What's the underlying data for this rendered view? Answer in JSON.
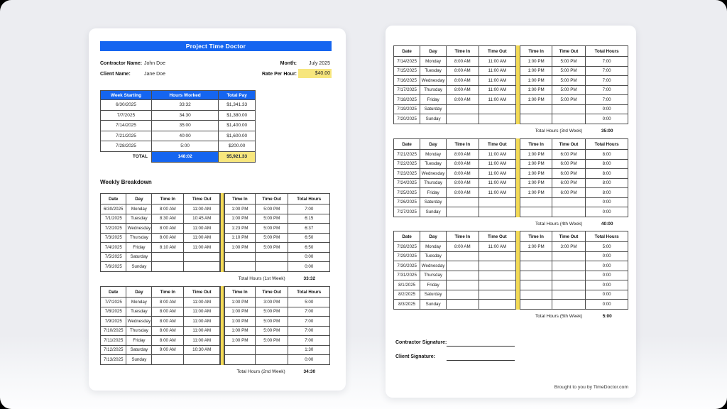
{
  "colors": {
    "accent_blue": "#1565f0",
    "highlight_yellow": "#f7e67d",
    "stripe_yellow": "#f3da55"
  },
  "document": {
    "title": "Project Time Doctor",
    "contractor_label": "Contractor Name:",
    "contractor_name": "John Doe",
    "client_label": "Client Name:",
    "client_name": "Jane Doe",
    "month_label": "Month:",
    "month_value": "July 2025",
    "rate_label": "Rate Per Hour:",
    "rate_value": "$40.00"
  },
  "summary_table": {
    "headers": [
      "Week Starting",
      "Hours Worked",
      "Total Pay"
    ],
    "rows": [
      [
        "6/30/2025",
        "33:32",
        "$1,341.33"
      ],
      [
        "7/7/2025",
        "34:30",
        "$1,380.00"
      ],
      [
        "7/14/2025",
        "35:00",
        "$1,400.00"
      ],
      [
        "7/21/2025",
        "40:00",
        "$1,600.00"
      ],
      [
        "7/28/2025",
        "5:00",
        "$200.00"
      ]
    ],
    "total_label": "TOTAL",
    "total_hours": "148:02",
    "total_pay": "$5,921.33"
  },
  "weekly_breakdown": {
    "heading": "Weekly Breakdown",
    "table_headers": [
      "Date",
      "Day",
      "Time In",
      "Time Out",
      "Time In",
      "Time Out",
      "Total Hours"
    ],
    "weeks": [
      {
        "total_label": "Total Hours (1st Week)",
        "total_value": "33:32",
        "rows": [
          [
            "6/30/2025",
            "Monday",
            "8:00 AM",
            "11:00 AM",
            "1:00 PM",
            "5:00 PM",
            "7:00"
          ],
          [
            "7/1/2025",
            "Tuesday",
            "8:30 AM",
            "10:45 AM",
            "1:00 PM",
            "5:00 PM",
            "6:15"
          ],
          [
            "7/2/2025",
            "Wednesday",
            "8:00 AM",
            "11:00 AM",
            "1:23 PM",
            "5:00 PM",
            "6:37"
          ],
          [
            "7/3/2025",
            "Thursday",
            "8:00 AM",
            "11:00 AM",
            "1:10 PM",
            "5:00 PM",
            "6:50"
          ],
          [
            "7/4/2025",
            "Friday",
            "8:10 AM",
            "11:00 AM",
            "1:00 PM",
            "5:00 PM",
            "6:50"
          ],
          [
            "7/5/2025",
            "Saturday",
            "",
            "",
            "",
            "",
            "0:00"
          ],
          [
            "7/6/2025",
            "Sunday",
            "",
            "",
            "",
            "",
            "0:00"
          ]
        ]
      },
      {
        "total_label": "Total Hours (2nd Week)",
        "total_value": "34:30",
        "rows": [
          [
            "7/7/2025",
            "Monday",
            "8:00 AM",
            "11:00 AM",
            "1:00 PM",
            "3:00 PM",
            "5:00"
          ],
          [
            "7/8/2025",
            "Tuesday",
            "8:00 AM",
            "11:00 AM",
            "1:00 PM",
            "5:00 PM",
            "7:00"
          ],
          [
            "7/9/2025",
            "Wednesday",
            "8:00 AM",
            "11:00 AM",
            "1:00 PM",
            "5:00 PM",
            "7:00"
          ],
          [
            "7/10/2025",
            "Thursday",
            "8:00 AM",
            "11:00 AM",
            "1:00 PM",
            "5:00 PM",
            "7:00"
          ],
          [
            "7/11/2025",
            "Friday",
            "8:00 AM",
            "11:00 AM",
            "1:00 PM",
            "5:00 PM",
            "7:00"
          ],
          [
            "7/12/2025",
            "Saturday",
            "9:00 AM",
            "10:30 AM",
            "",
            "",
            "1:30"
          ],
          [
            "7/13/2025",
            "Sunday",
            "",
            "",
            "",
            "",
            "0:00"
          ]
        ]
      },
      {
        "total_label": "Total Hours (3rd Week)",
        "total_value": "35:00",
        "rows": [
          [
            "7/14/2025",
            "Monday",
            "8:00 AM",
            "11:00 AM",
            "1:00 PM",
            "5:00 PM",
            "7:00"
          ],
          [
            "7/15/2025",
            "Tuesday",
            "8:00 AM",
            "11:00 AM",
            "1:00 PM",
            "5:00 PM",
            "7:00"
          ],
          [
            "7/16/2025",
            "Wednesday",
            "8:00 AM",
            "11:00 AM",
            "1:00 PM",
            "5:00 PM",
            "7:00"
          ],
          [
            "7/17/2025",
            "Thursday",
            "8:00 AM",
            "11:00 AM",
            "1:00 PM",
            "5:00 PM",
            "7:00"
          ],
          [
            "7/18/2025",
            "Friday",
            "8:00 AM",
            "11:00 AM",
            "1:00 PM",
            "5:00 PM",
            "7:00"
          ],
          [
            "7/19/2025",
            "Saturday",
            "",
            "",
            "",
            "",
            "0:00"
          ],
          [
            "7/20/2025",
            "Sunday",
            "",
            "",
            "",
            "",
            "0:00"
          ]
        ]
      },
      {
        "total_label": "Total Hours (4th Week)",
        "total_value": "40:00",
        "rows": [
          [
            "7/21/2025",
            "Monday",
            "8:00 AM",
            "11:00 AM",
            "1:00 PM",
            "6:00 PM",
            "8:00"
          ],
          [
            "7/22/2025",
            "Tuesday",
            "8:00 AM",
            "11:00 AM",
            "1:00 PM",
            "6:00 PM",
            "8:00"
          ],
          [
            "7/23/2025",
            "Wednesday",
            "8:00 AM",
            "11:00 AM",
            "1:00 PM",
            "6:00 PM",
            "8:00"
          ],
          [
            "7/24/2025",
            "Thursday",
            "8:00 AM",
            "11:00 AM",
            "1:00 PM",
            "6:00 PM",
            "8:00"
          ],
          [
            "7/25/2025",
            "Friday",
            "8:00 AM",
            "11:00 AM",
            "1:00 PM",
            "6:00 PM",
            "8:00"
          ],
          [
            "7/26/2025",
            "Saturday",
            "",
            "",
            "",
            "",
            "0:00"
          ],
          [
            "7/27/2025",
            "Sunday",
            "",
            "",
            "",
            "",
            "0:00"
          ]
        ]
      },
      {
        "total_label": "Total Hours (5th Week)",
        "total_value": "5:00",
        "rows": [
          [
            "7/28/2025",
            "Monday",
            "8:00 AM",
            "11:00 AM",
            "1:00 PM",
            "3:00 PM",
            "5:00"
          ],
          [
            "7/29/2025",
            "Tuesday",
            "",
            "",
            "",
            "",
            "0:00"
          ],
          [
            "7/30/2025",
            "Wednesday",
            "",
            "",
            "",
            "",
            "0:00"
          ],
          [
            "7/31/2025",
            "Thursday",
            "",
            "",
            "",
            "",
            "0:00"
          ],
          [
            "8/1/2025",
            "Friday",
            "",
            "",
            "",
            "",
            "0:00"
          ],
          [
            "8/2/2025",
            "Saturday",
            "",
            "",
            "",
            "",
            "0:00"
          ],
          [
            "8/3/2025",
            "Sunday",
            "",
            "",
            "",
            "",
            "0:00"
          ]
        ]
      }
    ]
  },
  "signatures": {
    "contractor_label": "Contractor Signature:",
    "client_label": "Client Signature:"
  },
  "footer": {
    "text": "Brought to you by TimeDoctor.com"
  }
}
